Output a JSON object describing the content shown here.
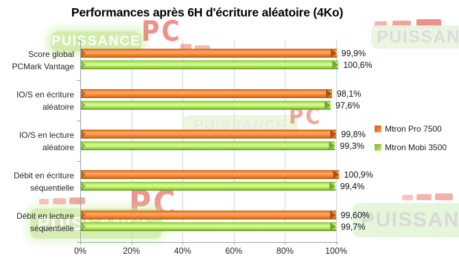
{
  "title": "Performances après 6H d'écriture aléatoire (4Ko)",
  "chart_data": {
    "type": "bar",
    "orientation": "horizontal",
    "title": "Performances après 6H d'écriture aléatoire (4Ko)",
    "categories": [
      "Score global\nPCMark Vantage",
      "IO/S en écriture\naléatoire",
      "IO/S en lecture\naléatoire",
      "Débit en écriture\nséquentielle",
      "Débit en lecture\nséquentielle"
    ],
    "series": [
      {
        "name": "Mtron Pro 7500",
        "color": "#ee7c26",
        "values": [
          99.9,
          98.1,
          99.8,
          100.9,
          99.6
        ],
        "labels": [
          "99,9%",
          "98,1%",
          "99,8%",
          "100,9%",
          "99,60%"
        ]
      },
      {
        "name": "Mtron Mobi 3500",
        "color": "#9ed94b",
        "values": [
          100.6,
          97.6,
          99.3,
          99.4,
          99.7
        ],
        "labels": [
          "100,6%",
          "97,6%",
          "99,3%",
          "99,4%",
          "99,7%"
        ]
      }
    ],
    "x_ticks": [
      "0%",
      "20%",
      "40%",
      "60%",
      "80%",
      "100%"
    ],
    "xlim": [
      0,
      100
    ],
    "xlabel": "",
    "ylabel": "",
    "grid": true,
    "legend_position": "right"
  },
  "watermark": {
    "text_main": "PUISSANCE",
    "text_partial": "PUISSAN",
    "text_pc": "PC",
    "green": "#c7e996",
    "red": "#e14d42"
  }
}
